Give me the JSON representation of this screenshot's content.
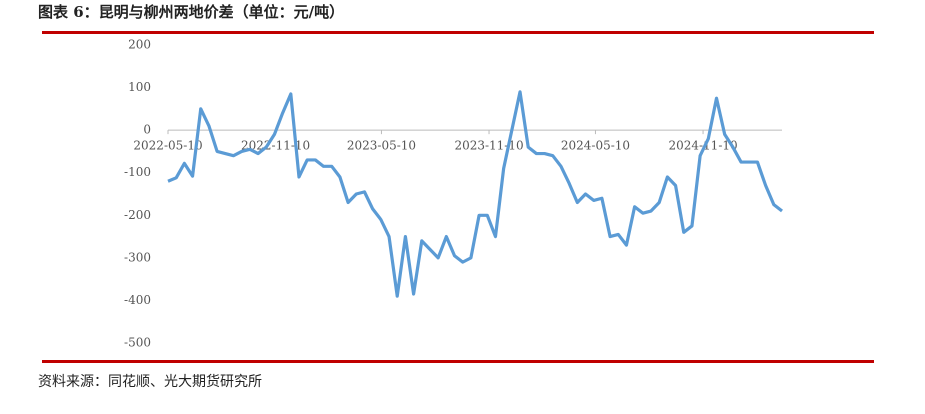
{
  "chart_data": {
    "type": "line",
    "title": "图表 6：昆明与柳州两地价差（单位：元/吨）",
    "source": "资料来源：同花顺、光大期货研究所",
    "x": [
      "2022-05-10",
      "2022-05-24",
      "2022-06-07",
      "2022-06-21",
      "2022-07-05",
      "2022-07-19",
      "2022-08-02",
      "2022-08-16",
      "2022-08-30",
      "2022-09-13",
      "2022-09-27",
      "2022-10-11",
      "2022-10-25",
      "2022-11-08",
      "2022-11-22",
      "2022-12-06",
      "2022-12-20",
      "2023-01-03",
      "2023-01-17",
      "2023-01-31",
      "2023-02-14",
      "2023-02-28",
      "2023-03-14",
      "2023-03-28",
      "2023-04-11",
      "2023-04-25",
      "2023-05-09",
      "2023-05-23",
      "2023-06-06",
      "2023-06-20",
      "2023-07-04",
      "2023-07-18",
      "2023-08-01",
      "2023-08-15",
      "2023-08-29",
      "2023-09-12",
      "2023-09-26",
      "2023-10-10",
      "2023-10-24",
      "2023-11-07",
      "2023-11-21",
      "2023-12-05",
      "2023-12-19",
      "2024-01-02",
      "2024-01-16",
      "2024-01-30",
      "2024-02-13",
      "2024-02-27",
      "2024-03-12",
      "2024-03-26",
      "2024-04-09",
      "2024-04-23",
      "2024-05-07",
      "2024-05-21",
      "2024-06-04",
      "2024-06-18",
      "2024-07-02",
      "2024-07-16",
      "2024-07-30",
      "2024-08-13",
      "2024-08-27",
      "2024-09-10",
      "2024-09-24",
      "2024-10-08",
      "2024-10-22",
      "2024-11-05",
      "2024-11-19",
      "2024-12-03",
      "2024-12-17",
      "2024-12-31",
      "2025-01-14",
      "2025-01-28",
      "2025-02-11",
      "2025-02-25",
      "2025-03-11",
      "2025-03-25"
    ],
    "series": [
      {
        "color": "#5b9bd5",
        "values": [
          -120,
          -112,
          -78,
          -108,
          50,
          10,
          -50,
          -55,
          -60,
          -50,
          -45,
          -55,
          -40,
          -10,
          40,
          85,
          -110,
          -70,
          -70,
          -85,
          -85,
          -110,
          -170,
          -150,
          -145,
          -185,
          -210,
          -250,
          -390,
          -250,
          -385,
          -260,
          -280,
          -300,
          -250,
          -295,
          -310,
          -300,
          -200,
          -200,
          -250,
          -90,
          0,
          90,
          -40,
          -55,
          -55,
          -60,
          -85,
          -125,
          -170,
          -150,
          -165,
          -160,
          -250,
          -245,
          -270,
          -180,
          -195,
          -190,
          -170,
          -110,
          -130,
          -240,
          -225,
          -60,
          -20,
          75,
          -10,
          -40,
          -75,
          -75,
          -75,
          -130,
          -175,
          -190
        ]
      }
    ],
    "xlim": [
      "2022-05-10",
      "2025-03-25"
    ],
    "xticks": [
      "2022-05-10",
      "2022-11-10",
      "2023-05-10",
      "2023-11-10",
      "2024-05-10",
      "2024-11-10"
    ],
    "ylim": [
      -500,
      200
    ],
    "yticks": [
      -500,
      -400,
      -300,
      -200,
      -100,
      0,
      100,
      200
    ],
    "grid": false
  }
}
